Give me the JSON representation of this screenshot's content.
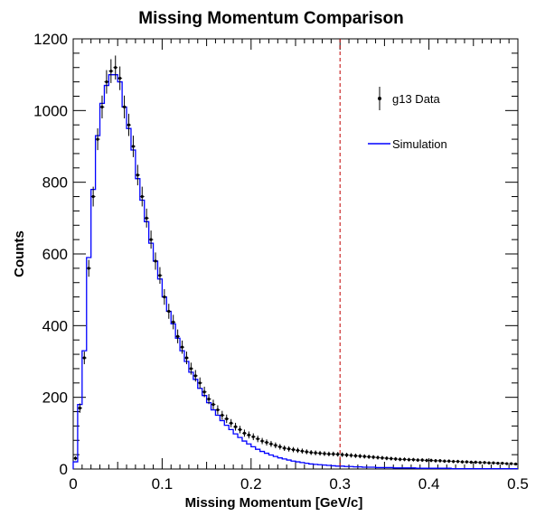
{
  "chart_data": {
    "type": "line",
    "title": "Missing Momentum Comparison",
    "xlabel": "Missing Momentum [GeV/c]",
    "ylabel": "Counts",
    "xlim": [
      0,
      0.5
    ],
    "ylim": [
      0,
      1200
    ],
    "x_ticks": [
      "0",
      "0.1",
      "0.2",
      "0.3",
      "0.4",
      "0.5"
    ],
    "y_ticks": [
      "0",
      "200",
      "400",
      "600",
      "800",
      "1000",
      "1200"
    ],
    "x_tick_values": [
      0,
      0.1,
      0.2,
      0.3,
      0.4,
      0.5
    ],
    "y_tick_values": [
      0,
      200,
      400,
      600,
      800,
      1000,
      1200
    ],
    "cut_line_x": 0.3,
    "legend_position": "top-right",
    "colors": {
      "data": "#000000",
      "simulation": "#0000ff",
      "cut_line": "#c00000"
    },
    "series": [
      {
        "name": "g13 Data",
        "style": "points-with-errors",
        "x": [
          0.0025,
          0.0075,
          0.0125,
          0.0175,
          0.0225,
          0.0275,
          0.0325,
          0.0375,
          0.0425,
          0.0475,
          0.0525,
          0.0575,
          0.0625,
          0.0675,
          0.0725,
          0.0775,
          0.0825,
          0.0875,
          0.0925,
          0.0975,
          0.1025,
          0.1075,
          0.1125,
          0.1175,
          0.1225,
          0.1275,
          0.1325,
          0.1375,
          0.1425,
          0.1475,
          0.1525,
          0.1575,
          0.1625,
          0.1675,
          0.1725,
          0.1775,
          0.1825,
          0.1875,
          0.1925,
          0.1975,
          0.2025,
          0.2075,
          0.2125,
          0.2175,
          0.2225,
          0.2275,
          0.2325,
          0.2375,
          0.2425,
          0.2475,
          0.2525,
          0.2575,
          0.2625,
          0.2675,
          0.2725,
          0.2775,
          0.2825,
          0.2875,
          0.2925,
          0.2975,
          0.3025,
          0.3075,
          0.3125,
          0.3175,
          0.3225,
          0.3275,
          0.3325,
          0.3375,
          0.3425,
          0.3475,
          0.3525,
          0.3575,
          0.3625,
          0.3675,
          0.3725,
          0.3775,
          0.3825,
          0.3875,
          0.3925,
          0.3975,
          0.4025,
          0.4075,
          0.4125,
          0.4175,
          0.4225,
          0.4275,
          0.4325,
          0.4375,
          0.4425,
          0.4475,
          0.4525,
          0.4575,
          0.4625,
          0.4675,
          0.4725,
          0.4775,
          0.4825,
          0.4875,
          0.4925,
          0.4975
        ],
        "y": [
          30,
          170,
          310,
          560,
          760,
          920,
          1010,
          1080,
          1110,
          1120,
          1090,
          1010,
          960,
          900,
          820,
          760,
          700,
          640,
          580,
          540,
          480,
          440,
          410,
          370,
          340,
          310,
          280,
          260,
          240,
          215,
          195,
          180,
          165,
          150,
          140,
          128,
          118,
          110,
          100,
          95,
          90,
          84,
          78,
          74,
          70,
          66,
          62,
          58,
          56,
          54,
          52,
          50,
          48,
          46,
          45,
          44,
          43,
          42,
          42,
          41,
          40,
          39,
          38,
          37,
          36,
          35,
          34,
          33,
          32,
          31,
          30,
          29,
          28,
          27,
          27,
          26,
          26,
          25,
          25,
          24,
          24,
          23,
          23,
          22,
          22,
          21,
          21,
          20,
          20,
          19,
          19,
          18,
          18,
          17,
          17,
          16,
          16,
          15,
          15,
          14
        ]
      },
      {
        "name": "Simulation",
        "style": "histogram",
        "x": [
          0.0025,
          0.0075,
          0.0125,
          0.0175,
          0.0225,
          0.0275,
          0.0325,
          0.0375,
          0.0425,
          0.0475,
          0.0525,
          0.0575,
          0.0625,
          0.0675,
          0.0725,
          0.0775,
          0.0825,
          0.0875,
          0.0925,
          0.0975,
          0.1025,
          0.1075,
          0.1125,
          0.1175,
          0.1225,
          0.1275,
          0.1325,
          0.1375,
          0.1425,
          0.1475,
          0.1525,
          0.1575,
          0.1625,
          0.1675,
          0.1725,
          0.1775,
          0.1825,
          0.1875,
          0.1925,
          0.1975,
          0.2025,
          0.2075,
          0.2125,
          0.2175,
          0.2225,
          0.2275,
          0.2325,
          0.2375,
          0.2425,
          0.2475,
          0.2525,
          0.2575,
          0.2625,
          0.2675,
          0.2725,
          0.2775,
          0.2825,
          0.2875,
          0.2925,
          0.2975,
          0.3025,
          0.3075,
          0.3125,
          0.3175,
          0.3225,
          0.3275,
          0.3325,
          0.3375,
          0.3425,
          0.3475,
          0.3525,
          0.3575,
          0.3625,
          0.3675,
          0.3725,
          0.3775,
          0.3825,
          0.3875,
          0.3925,
          0.3975,
          0.4025,
          0.4075,
          0.4125,
          0.4175,
          0.4225,
          0.4275,
          0.4325,
          0.4375,
          0.4425,
          0.4475,
          0.4525,
          0.4575,
          0.4625,
          0.4675,
          0.4725,
          0.4775,
          0.4825,
          0.4875,
          0.4925,
          0.4975
        ],
        "y": [
          20,
          180,
          330,
          590,
          780,
          930,
          1020,
          1070,
          1100,
          1100,
          1080,
          1010,
          950,
          890,
          810,
          750,
          690,
          630,
          580,
          530,
          480,
          440,
          405,
          365,
          330,
          300,
          270,
          250,
          225,
          205,
          185,
          165,
          150,
          135,
          122,
          110,
          98,
          88,
          78,
          70,
          62,
          55,
          49,
          44,
          39,
          35,
          31,
          28,
          25,
          22,
          20,
          18,
          16,
          14,
          13,
          12,
          11,
          10,
          9,
          8,
          8,
          7,
          7,
          6,
          6,
          5,
          5,
          5,
          4,
          4,
          4,
          4,
          3,
          3,
          3,
          3,
          3,
          2,
          2,
          2,
          2,
          2,
          2,
          2,
          2,
          1,
          1,
          1,
          1,
          1,
          1,
          1,
          1,
          1,
          1,
          1,
          1,
          1,
          1,
          1
        ]
      }
    ]
  }
}
